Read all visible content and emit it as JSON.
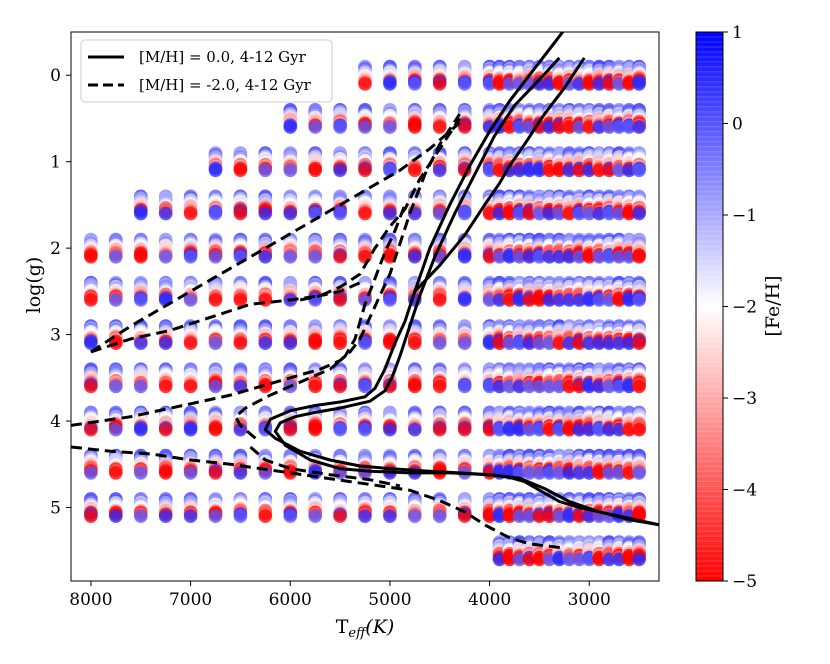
{
  "chart_data": {
    "type": "scatter",
    "xlabel": "T",
    "xlabel_sub": "eff",
    "xlabel_unit": "(K)",
    "ylabel": "log(g)",
    "colorbar_label": "[Fe/H]",
    "xlim": [
      8200,
      2300
    ],
    "ylim": [
      -0.5,
      5.85
    ],
    "y_inverted": true,
    "xticks": [
      8000,
      7000,
      6000,
      5000,
      4000,
      3000
    ],
    "yticks": [
      0,
      1,
      2,
      3,
      4,
      5
    ],
    "colorbar_range": [
      -5,
      1
    ],
    "colorbar_ticks": [
      1,
      0,
      -1,
      -2,
      -3,
      -4,
      -5
    ],
    "colorbar_tick_labels": [
      "1",
      "0",
      "−1",
      "−2",
      "−3",
      "−4",
      "−5"
    ],
    "colormap": {
      "low": "#ff0000",
      "mid": "#ffffff",
      "high": "#0000ff"
    },
    "legend": {
      "position": "top-left",
      "entries": [
        {
          "label": "[M/H] = 0.0, 4-12 Gyr",
          "style": "solid"
        },
        {
          "label": "[M/H] = -2.0, 4-12 Gyr",
          "style": "dashed"
        }
      ]
    },
    "scatter_grid": {
      "hot_teff": [
        8000,
        7750,
        7500,
        7250,
        7000,
        6750,
        6500,
        6250,
        6000,
        5750,
        5500,
        5250,
        5000,
        4750,
        4500,
        4250
      ],
      "hot_logg_step": 0.5,
      "hot_logg_min": {
        "8000": 2.0,
        "7750": 2.0,
        "7500": 1.5,
        "7250": 1.5,
        "7000": 1.5,
        "6750": 1.0,
        "6500": 1.0,
        "6250": 1.0,
        "6000": 0.5,
        "5750": 0.5,
        "5500": 0.5,
        "5250": 0.0,
        "5000": 0.0,
        "4750": 0.0,
        "4500": 0.0,
        "4250": 0.0
      },
      "hot_logg_max": 5.0,
      "hot_metallicities": [
        0.5,
        0.0,
        -0.5,
        -1.0,
        -1.5,
        -2.0,
        -2.5,
        -3.0,
        -4.0,
        -5.0
      ],
      "cool_teff_range": [
        4000,
        2500
      ],
      "cool_teff_step": 100,
      "cool_logg_step": 0.5,
      "cool_logg_max": 5.5
    },
    "isochrones": [
      {
        "label": "[M/H] = 0.0, 4-12 Gyr",
        "style": "solid",
        "tracks": [
          [
            [
              2300,
              5.2
            ],
            [
              2500,
              5.15
            ],
            [
              2700,
              5.1
            ],
            [
              2900,
              5.05
            ],
            [
              3100,
              5.0
            ],
            [
              3300,
              4.93
            ],
            [
              3500,
              4.8
            ],
            [
              3650,
              4.7
            ],
            [
              3800,
              4.65
            ],
            [
              4000,
              4.62
            ],
            [
              4300,
              4.6
            ],
            [
              4600,
              4.58
            ],
            [
              5000,
              4.55
            ],
            [
              5300,
              4.52
            ],
            [
              5600,
              4.45
            ],
            [
              5900,
              4.35
            ],
            [
              6150,
              4.2
            ],
            [
              6250,
              4.1
            ],
            [
              6200,
              3.98
            ],
            [
              6000,
              3.88
            ],
            [
              5750,
              3.82
            ],
            [
              5500,
              3.78
            ],
            [
              5250,
              3.72
            ],
            [
              5150,
              3.62
            ],
            [
              5050,
              3.4
            ],
            [
              4950,
              3.1
            ],
            [
              4850,
              2.85
            ],
            [
              4750,
              2.5
            ],
            [
              4600,
              2.0
            ],
            [
              4400,
              1.5
            ],
            [
              4200,
              1.05
            ],
            [
              4000,
              0.65
            ],
            [
              3800,
              0.3
            ],
            [
              3600,
              0.0
            ],
            [
              3400,
              -0.3
            ],
            [
              3200,
              -0.6
            ]
          ],
          [
            [
              2300,
              5.2
            ],
            [
              2600,
              5.14
            ],
            [
              2900,
              5.05
            ],
            [
              3200,
              4.93
            ],
            [
              3450,
              4.78
            ],
            [
              3700,
              4.66
            ],
            [
              4000,
              4.62
            ],
            [
              4400,
              4.6
            ],
            [
              4800,
              4.6
            ],
            [
              5200,
              4.58
            ],
            [
              5500,
              4.55
            ],
            [
              5800,
              4.45
            ],
            [
              6050,
              4.28
            ],
            [
              6150,
              4.12
            ],
            [
              6100,
              4.02
            ],
            [
              5950,
              3.95
            ],
            [
              5750,
              3.9
            ],
            [
              5500,
              3.85
            ],
            [
              5200,
              3.77
            ],
            [
              5050,
              3.65
            ],
            [
              4980,
              3.5
            ],
            [
              4900,
              3.25
            ],
            [
              4800,
              2.9
            ],
            [
              4700,
              2.55
            ],
            [
              4550,
              2.1
            ],
            [
              4350,
              1.6
            ],
            [
              4150,
              1.15
            ],
            [
              3950,
              0.7
            ],
            [
              3750,
              0.35
            ],
            [
              3500,
              0.05
            ],
            [
              3300,
              -0.2
            ]
          ],
          [
            [
              4750,
              2.5
            ],
            [
              4500,
              2.2
            ],
            [
              4250,
              1.85
            ],
            [
              4050,
              1.5
            ],
            [
              3900,
              1.25
            ],
            [
              3800,
              1.05
            ],
            [
              3650,
              0.8
            ],
            [
              3450,
              0.45
            ],
            [
              3250,
              0.15
            ],
            [
              3050,
              -0.2
            ]
          ]
        ]
      },
      {
        "label": "[M/H] = -2.0, 4-12 Gyr",
        "style": "dashed",
        "tracks": [
          [
            [
              8200,
              4.3
            ],
            [
              7800,
              4.35
            ],
            [
              7400,
              4.38
            ],
            [
              7000,
              4.45
            ],
            [
              6600,
              4.5
            ],
            [
              6300,
              4.55
            ],
            [
              6000,
              4.6
            ],
            [
              5700,
              4.65
            ],
            [
              5400,
              4.7
            ],
            [
              5100,
              4.75
            ],
            [
              4800,
              4.8
            ],
            [
              4500,
              4.92
            ],
            [
              4250,
              5.05
            ],
            [
              4050,
              5.2
            ],
            [
              3800,
              5.35
            ],
            [
              3600,
              5.42
            ],
            [
              3250,
              5.47
            ]
          ],
          [
            [
              8200,
              4.05
            ],
            [
              7600,
              3.95
            ],
            [
              7000,
              3.8
            ],
            [
              6600,
              3.7
            ],
            [
              6300,
              3.6
            ],
            [
              6000,
              3.5
            ],
            [
              5700,
              3.4
            ],
            [
              5500,
              3.3
            ],
            [
              5400,
              3.2
            ],
            [
              5300,
              3.05
            ],
            [
              5200,
              2.8
            ],
            [
              5100,
              2.55
            ],
            [
              5000,
              2.3
            ],
            [
              4900,
              1.95
            ],
            [
              4800,
              1.6
            ],
            [
              4650,
              1.15
            ],
            [
              4500,
              0.8
            ],
            [
              4300,
              0.45
            ]
          ],
          [
            [
              8000,
              3.2
            ],
            [
              7600,
              3.05
            ],
            [
              7200,
              2.95
            ],
            [
              6800,
              2.8
            ],
            [
              6400,
              2.65
            ],
            [
              6000,
              2.6
            ],
            [
              5700,
              2.55
            ],
            [
              5500,
              2.45
            ],
            [
              5300,
              2.3
            ],
            [
              5150,
              2.0
            ],
            [
              5000,
              1.75
            ],
            [
              4850,
              1.55
            ],
            [
              4700,
              1.2
            ],
            [
              4500,
              0.85
            ],
            [
              4300,
              0.5
            ]
          ],
          [
            [
              8000,
              3.2
            ],
            [
              7800,
              3.05
            ],
            [
              7600,
              2.9
            ],
            [
              7300,
              2.7
            ],
            [
              7000,
              2.5
            ],
            [
              6700,
              2.3
            ],
            [
              6400,
              2.1
            ],
            [
              6100,
              1.9
            ],
            [
              5800,
              1.7
            ],
            [
              5500,
              1.5
            ],
            [
              5200,
              1.3
            ],
            [
              4900,
              1.1
            ],
            [
              4600,
              0.85
            ],
            [
              4300,
              0.55
            ]
          ],
          [
            [
              6350,
              4.2
            ],
            [
              6500,
              4.05
            ],
            [
              6550,
              3.95
            ],
            [
              6450,
              3.85
            ],
            [
              6200,
              3.7
            ],
            [
              5900,
              3.55
            ],
            [
              5600,
              3.4
            ],
            [
              5450,
              3.25
            ],
            [
              5350,
              3.05
            ],
            [
              5300,
              2.85
            ],
            [
              5250,
              2.65
            ],
            [
              5150,
              2.35
            ],
            [
              5050,
              2.05
            ],
            [
              4950,
              1.8
            ],
            [
              4850,
              1.5
            ]
          ],
          [
            [
              6400,
              4.3
            ],
            [
              6250,
              4.45
            ],
            [
              6000,
              4.55
            ],
            [
              5600,
              4.62
            ],
            [
              5200,
              4.68
            ],
            [
              4900,
              4.75
            ]
          ],
          [
            [
              5900,
              2.6
            ],
            [
              5700,
              2.55
            ],
            [
              5500,
              2.5
            ],
            [
              5300,
              2.4
            ]
          ]
        ]
      }
    ]
  }
}
